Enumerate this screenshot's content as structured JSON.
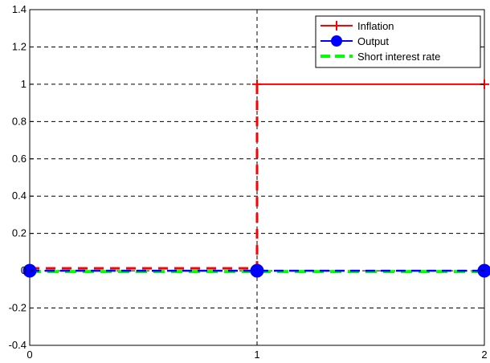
{
  "chart_data": {
    "type": "line",
    "title": "",
    "xlabel": "",
    "ylabel": "",
    "xlim": [
      0,
      2
    ],
    "ylim": [
      -0.4,
      1.4
    ],
    "x_ticks": [
      0,
      1,
      2
    ],
    "x_tick_labels": [
      "0",
      "1",
      "2"
    ],
    "y_ticks": [
      -0.4,
      -0.2,
      0,
      0.2,
      0.4,
      0.6,
      0.8,
      1,
      1.2,
      1.4
    ],
    "y_tick_labels": [
      "-0.4",
      "-0.2",
      "0",
      "0.2",
      "0.4",
      "0.6",
      "0.8",
      "1",
      "1.2",
      "1.4"
    ],
    "grid": true,
    "legend_position": "top-right",
    "series": [
      {
        "name": "Inflation",
        "color": "#ff0000",
        "marker": "plus",
        "x": [
          0,
          1,
          2
        ],
        "values": [
          0,
          1,
          1
        ]
      },
      {
        "name": "Output",
        "color": "#0000ff",
        "marker": "circle",
        "x": [
          0,
          1,
          2
        ],
        "values": [
          0,
          0,
          0
        ]
      },
      {
        "name": "Short interest rate",
        "color": "#00ff00",
        "marker": "none",
        "x": [
          0,
          1,
          2
        ],
        "values": [
          0,
          0,
          0
        ]
      }
    ]
  }
}
